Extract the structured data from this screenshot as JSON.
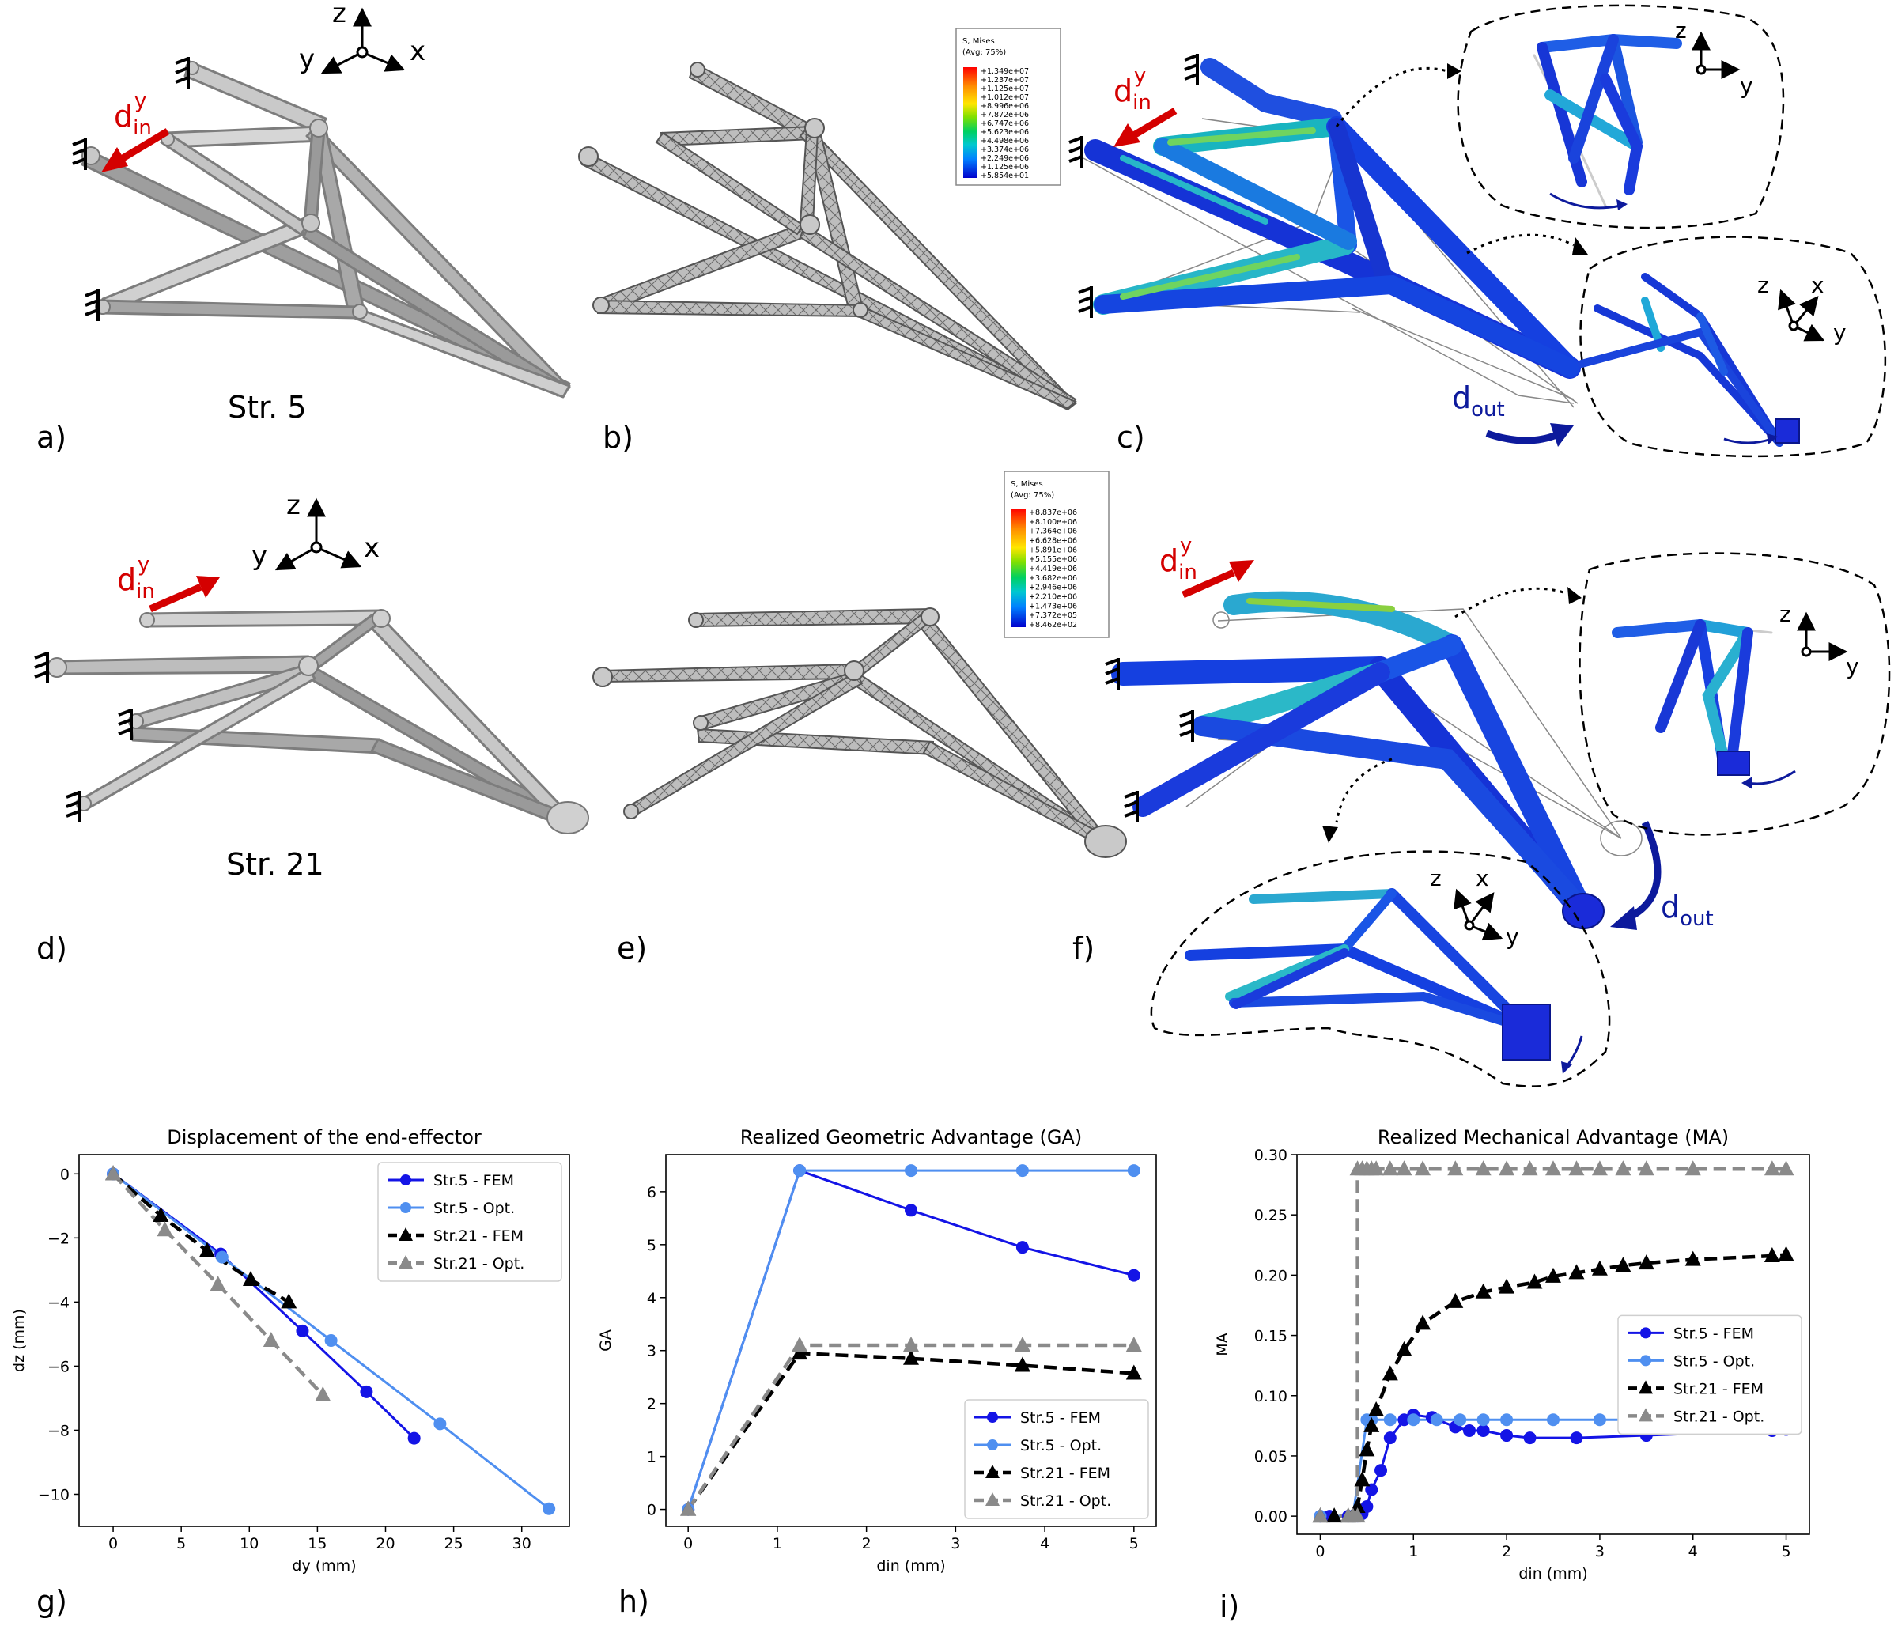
{
  "labels": {
    "a": "a)",
    "b": "b)",
    "c": "c)",
    "d": "d)",
    "e": "e)",
    "f": "f)",
    "g": "g)",
    "h": "h)",
    "i": "i)"
  },
  "structures": {
    "top": "Str. 5",
    "bottom": "Str. 21"
  },
  "axes": {
    "x": "x",
    "y": "y",
    "z": "z"
  },
  "annotations": {
    "din": "d",
    "din_sup": "y",
    "din_sub": "in",
    "dout": "d",
    "dout_sub": "out"
  },
  "legend_top": {
    "title": "S, Mises",
    "subtitle": "(Avg: 75%)",
    "values": [
      "+1.349e+07",
      "+1.237e+07",
      "+1.125e+07",
      "+1.012e+07",
      "+8.996e+06",
      "+7.872e+06",
      "+6.747e+06",
      "+5.623e+06",
      "+4.498e+06",
      "+3.374e+06",
      "+2.249e+06",
      "+1.125e+06",
      "+5.854e+01"
    ]
  },
  "legend_bottom": {
    "title": "S, Mises",
    "subtitle": "(Avg: 75%)",
    "values": [
      "+8.837e+06",
      "+8.100e+06",
      "+7.364e+06",
      "+6.628e+06",
      "+5.891e+06",
      "+5.155e+06",
      "+4.419e+06",
      "+3.682e+06",
      "+2.946e+06",
      "+2.210e+06",
      "+1.473e+06",
      "+7.372e+05",
      "+8.462e+02"
    ]
  },
  "colors": {
    "str5_fem": "#1414e6",
    "str5_opt": "#4f8ff0",
    "str21_fem": "#000000",
    "str21_opt": "#8a8a8a",
    "din_arrow": "#d40000",
    "dout_arrow": "#0d1a9c"
  },
  "chart_data": [
    {
      "type": "line",
      "title": "Displacement of the end-effector",
      "xlabel": "dy (mm)",
      "ylabel": "dz (mm)",
      "xlim": [
        -2.5,
        33.5
      ],
      "ylim": [
        -11,
        0.6
      ],
      "xticks": [
        0,
        5,
        10,
        15,
        20,
        25,
        30
      ],
      "yticks": [
        0,
        -2,
        -4,
        -6,
        -8,
        -10
      ],
      "legend": "top-right",
      "series": [
        {
          "name": "Str.5 - FEM",
          "style": "solid-circle",
          "x": [
            0,
            7.9,
            13.9,
            18.6,
            22.1
          ],
          "y": [
            0,
            -2.5,
            -4.9,
            -6.8,
            -8.25
          ]
        },
        {
          "name": "Str.5 - Opt.",
          "style": "solid-circle",
          "x": [
            0,
            8.0,
            16.0,
            24.0,
            32.0
          ],
          "y": [
            0,
            -2.6,
            -5.2,
            -7.8,
            -10.45
          ]
        },
        {
          "name": "Str.21 - FEM",
          "style": "dashed-triangle",
          "x": [
            0,
            3.5,
            6.9,
            10.1,
            12.9
          ],
          "y": [
            0,
            -1.3,
            -2.4,
            -3.3,
            -4.0
          ]
        },
        {
          "name": "Str.21 - Opt.",
          "style": "dashed-triangle",
          "x": [
            0,
            3.8,
            7.7,
            11.6,
            15.4
          ],
          "y": [
            0,
            -1.75,
            -3.45,
            -5.2,
            -6.9
          ]
        }
      ]
    },
    {
      "type": "line",
      "title": "Realized Geometric Advantage (GA)",
      "xlabel": "din (mm)",
      "ylabel": "GA",
      "xlim": [
        -0.25,
        5.25
      ],
      "ylim": [
        -0.32,
        6.7
      ],
      "xticks": [
        0,
        1,
        2,
        3,
        4,
        5
      ],
      "yticks": [
        0,
        1,
        2,
        3,
        4,
        5,
        6
      ],
      "legend": "bottom-right",
      "series": [
        {
          "name": "Str.5 - FEM",
          "style": "solid-circle",
          "x": [
            0,
            1.25,
            2.5,
            3.75,
            5.0
          ],
          "y": [
            0,
            6.4,
            5.65,
            4.95,
            4.42
          ]
        },
        {
          "name": "Str.5 - Opt.",
          "style": "solid-circle",
          "x": [
            0,
            1.25,
            2.5,
            3.75,
            5.0
          ],
          "y": [
            0,
            6.4,
            6.4,
            6.4,
            6.4
          ]
        },
        {
          "name": "Str.21 - FEM",
          "style": "dashed-triangle",
          "x": [
            0,
            1.25,
            2.5,
            3.75,
            5.0
          ],
          "y": [
            0,
            2.95,
            2.85,
            2.72,
            2.57
          ]
        },
        {
          "name": "Str.21 - Opt.",
          "style": "dashed-triangle",
          "x": [
            0,
            1.25,
            2.5,
            3.75,
            5.0
          ],
          "y": [
            0,
            3.1,
            3.1,
            3.1,
            3.1
          ]
        }
      ]
    },
    {
      "type": "line",
      "title": "Realized Mechanical Advantage (MA)",
      "xlabel": "din (mm)",
      "ylabel": "MA",
      "xlim": [
        -0.25,
        5.25
      ],
      "ylim": [
        -0.015,
        0.3
      ],
      "xticks": [
        0,
        1,
        2,
        3,
        4,
        5
      ],
      "yticks": [
        0.0,
        0.05,
        0.1,
        0.15,
        0.2,
        0.25,
        0.3
      ],
      "ytick_labels": [
        "0.00",
        "0.05",
        "0.10",
        "0.15",
        "0.20",
        "0.25",
        "0.30"
      ],
      "legend": "center-right",
      "series": [
        {
          "name": "Str.5 - FEM",
          "style": "solid-circle",
          "x": [
            0,
            0.1,
            0.3,
            0.4,
            0.45,
            0.5,
            0.55,
            0.65,
            0.75,
            0.9,
            1.0,
            1.2,
            1.45,
            1.6,
            1.75,
            2.0,
            2.25,
            2.75,
            3.5,
            4.85,
            5.0
          ],
          "y": [
            0,
            0,
            0,
            0,
            0.002,
            0.008,
            0.022,
            0.038,
            0.065,
            0.08,
            0.084,
            0.082,
            0.074,
            0.071,
            0.071,
            0.067,
            0.065,
            0.065,
            0.067,
            0.071,
            0.072
          ]
        },
        {
          "name": "Str.5 - Opt.",
          "style": "solid-circle",
          "x": [
            0,
            0.35,
            0.5,
            0.55,
            0.75,
            1.0,
            1.25,
            1.5,
            1.75,
            2.0,
            2.5,
            3.0,
            3.5,
            4.0,
            4.5,
            5.0
          ],
          "y": [
            0,
            0,
            0.08,
            0.08,
            0.08,
            0.08,
            0.08,
            0.08,
            0.08,
            0.08,
            0.08,
            0.08,
            0.08,
            0.08,
            0.08,
            0.08
          ]
        },
        {
          "name": "Str.21 - FEM",
          "style": "dashed-triangle",
          "x": [
            0,
            0.15,
            0.3,
            0.4,
            0.45,
            0.5,
            0.55,
            0.6,
            0.75,
            0.9,
            1.1,
            1.45,
            1.75,
            2.0,
            2.3,
            2.5,
            2.75,
            3.0,
            3.25,
            3.5,
            4.0,
            4.85,
            5.0
          ],
          "y": [
            0,
            0,
            0,
            0.008,
            0.03,
            0.055,
            0.075,
            0.088,
            0.118,
            0.138,
            0.16,
            0.178,
            0.186,
            0.19,
            0.194,
            0.199,
            0.202,
            0.205,
            0.208,
            0.21,
            0.213,
            0.216,
            0.217
          ]
        },
        {
          "name": "Str.21 - Opt.",
          "style": "dashed-triangle",
          "x": [
            0,
            0.3,
            0.35,
            0.4,
            0.4,
            0.45,
            0.5,
            0.55,
            0.6,
            0.75,
            0.9,
            1.1,
            1.45,
            1.75,
            2.0,
            2.25,
            2.5,
            2.75,
            3.0,
            3.25,
            3.5,
            4.0,
            4.85,
            5.0
          ],
          "y": [
            0,
            0,
            0,
            0,
            0.288,
            0.288,
            0.288,
            0.288,
            0.288,
            0.288,
            0.288,
            0.288,
            0.288,
            0.288,
            0.288,
            0.288,
            0.288,
            0.288,
            0.288,
            0.288,
            0.288,
            0.288,
            0.288,
            0.288
          ]
        }
      ]
    }
  ]
}
